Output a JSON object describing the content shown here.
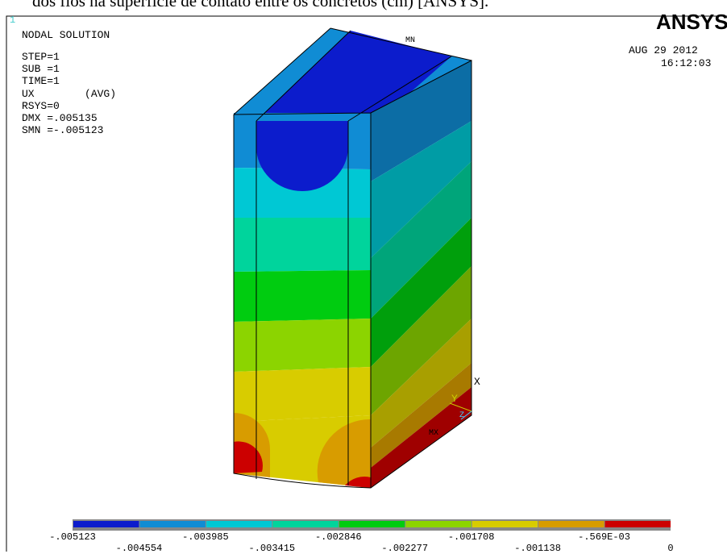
{
  "caption": "dos fios na superfície de contato entre os concretos (cm) [ANSYS].",
  "window_number": "1",
  "logo": "ANSYS",
  "info": [
    "NODAL SOLUTION",
    "STEP=1",
    "SUB =1",
    "TIME=1",
    "UX        (AVG)",
    "RSYS=0",
    "DMX =.005135",
    "SMN =-.005123"
  ],
  "date": "AUG 29 2012",
  "time": "16:12:03",
  "markers": {
    "min": "MN",
    "max": "MX"
  },
  "axes": {
    "x": "X",
    "y": "Y",
    "z": "Z"
  },
  "legend": {
    "labels": [
      "-.005123",
      "-.004554",
      "-.003985",
      "-.003415",
      "-.002846",
      "-.002277",
      "-.001708",
      "-.001138",
      "-.569E-03",
      "0"
    ],
    "colors": [
      "#0c1ccc",
      "#108cd4",
      "#00c8d4",
      "#00d49c",
      "#00cc10",
      "#8cd400",
      "#d8cc00",
      "#d89c00",
      "#cc0000"
    ]
  }
}
